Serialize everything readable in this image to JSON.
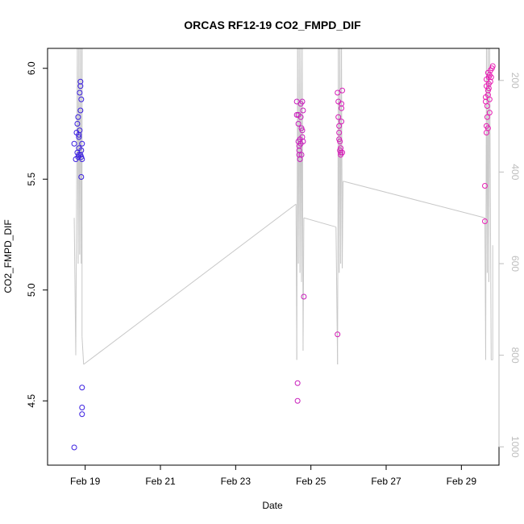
{
  "chart_data": {
    "type": "scatter",
    "title": "ORCAS RF12-19 CO2_FMPD_DIF",
    "xlabel": "Date",
    "ylabel": "CO2_FMPD_DIF",
    "xlim": [
      "2016-02-18 00:00",
      "2016-03-01 00:00"
    ],
    "ylim": [
      4.21,
      6.09
    ],
    "y_ticks": [
      "4.5",
      "5.0",
      "5.5",
      "6.0"
    ],
    "y_tick_values": [
      4.5,
      5.0,
      5.5,
      6.0
    ],
    "x_ticks": [
      "Feb 19",
      "Feb 21",
      "Feb 23",
      "Feb 25",
      "Feb 27",
      "Feb 29"
    ],
    "x_tick_values": [
      "2016-02-19",
      "2016-02-21",
      "2016-02-23",
      "2016-02-25",
      "2016-02-27",
      "2016-02-29"
    ],
    "right_axis": {
      "ylim": [
        1040,
        130
      ],
      "ticks": [
        "200",
        "400",
        "600",
        "800",
        "1000"
      ],
      "tick_values": [
        200,
        400,
        600,
        800,
        1000
      ],
      "color": "#bdbdbd"
    },
    "grid": false,
    "colors": {
      "early": "#3a1fe0",
      "late": "#e81eb4",
      "line": "#c8c8c8"
    },
    "series": [
      {
        "marker": "circle-open",
        "points": [
          [
            "2016-02-18 17:00",
            5.66,
            0.0
          ],
          [
            "2016-02-18 17:00",
            4.29,
            0.0
          ],
          [
            "2016-02-18 18:00",
            5.59,
            0.0
          ],
          [
            "2016-02-18 18:30",
            5.71,
            0.0
          ],
          [
            "2016-02-18 19:00",
            5.62,
            0.0
          ],
          [
            "2016-02-18 19:00",
            5.75,
            0.0
          ],
          [
            "2016-02-18 19:30",
            5.6,
            0.0
          ],
          [
            "2016-02-18 19:30",
            5.78,
            0.0
          ],
          [
            "2016-02-18 20:00",
            5.61,
            0.0
          ],
          [
            "2016-02-18 20:00",
            5.69,
            0.0
          ],
          [
            "2016-02-18 20:00",
            5.64,
            0.0
          ],
          [
            "2016-02-18 20:00",
            5.7,
            0.0
          ],
          [
            "2016-02-18 20:30",
            5.89,
            0.0
          ],
          [
            "2016-02-18 20:30",
            5.72,
            0.0
          ],
          [
            "2016-02-18 21:00",
            5.81,
            0.0
          ],
          [
            "2016-02-18 21:00",
            5.94,
            0.0
          ],
          [
            "2016-02-18 21:00",
            5.92,
            0.0
          ],
          [
            "2016-02-18 21:00",
            5.61,
            0.0
          ],
          [
            "2016-02-18 21:30",
            5.86,
            0.0
          ],
          [
            "2016-02-18 21:30",
            5.63,
            0.0
          ],
          [
            "2016-02-18 21:30",
            5.6,
            0.0
          ],
          [
            "2016-02-18 21:30",
            5.51,
            0.0
          ],
          [
            "2016-02-18 22:00",
            5.66,
            0.0
          ],
          [
            "2016-02-18 22:00",
            4.56,
            0.0
          ],
          [
            "2016-02-18 22:00",
            4.47,
            0.0
          ],
          [
            "2016-02-18 22:00",
            4.44,
            0.0
          ],
          [
            "2016-02-18 22:00",
            5.59,
            0.0
          ],
          [
            "2016-02-24 15:00",
            5.85,
            0.82
          ],
          [
            "2016-02-24 15:00",
            5.79,
            0.82
          ],
          [
            "2016-02-24 15:30",
            4.58,
            0.82
          ],
          [
            "2016-02-24 15:30",
            4.5,
            0.82
          ],
          [
            "2016-02-24 16:00",
            5.79,
            0.82
          ],
          [
            "2016-02-24 16:00",
            5.75,
            0.82
          ],
          [
            "2016-02-24 16:00",
            5.67,
            0.82
          ],
          [
            "2016-02-24 16:30",
            5.63,
            0.82
          ],
          [
            "2016-02-24 16:30",
            5.61,
            0.82
          ],
          [
            "2016-02-24 16:30",
            5.65,
            0.82
          ],
          [
            "2016-02-24 17:00",
            5.59,
            0.82
          ],
          [
            "2016-02-24 17:00",
            5.68,
            0.82
          ],
          [
            "2016-02-24 17:30",
            5.84,
            0.82
          ],
          [
            "2016-02-24 17:30",
            5.78,
            0.82
          ],
          [
            "2016-02-24 17:30",
            5.66,
            0.82
          ],
          [
            "2016-02-24 18:00",
            5.61,
            0.82
          ],
          [
            "2016-02-24 18:00",
            5.73,
            0.82
          ],
          [
            "2016-02-24 18:30",
            5.85,
            0.82
          ],
          [
            "2016-02-24 18:30",
            5.72,
            0.82
          ],
          [
            "2016-02-24 18:30",
            5.69,
            0.82
          ],
          [
            "2016-02-24 19:00",
            5.67,
            0.82
          ],
          [
            "2016-02-24 19:00",
            5.81,
            0.82
          ],
          [
            "2016-02-24 19:30",
            4.97,
            0.82
          ],
          [
            "2016-02-25 17:00",
            4.8,
            0.9
          ],
          [
            "2016-02-25 17:00",
            5.89,
            0.9
          ],
          [
            "2016-02-25 17:30",
            5.85,
            0.9
          ],
          [
            "2016-02-25 17:30",
            5.78,
            0.9
          ],
          [
            "2016-02-25 18:00",
            5.71,
            0.9
          ],
          [
            "2016-02-25 18:00",
            5.74,
            0.9
          ],
          [
            "2016-02-25 18:00",
            5.68,
            0.9
          ],
          [
            "2016-02-25 18:30",
            5.67,
            0.9
          ],
          [
            "2016-02-25 18:30",
            5.63,
            0.9
          ],
          [
            "2016-02-25 19:00",
            5.64,
            0.9
          ],
          [
            "2016-02-25 19:00",
            5.62,
            0.9
          ],
          [
            "2016-02-25 19:00",
            5.61,
            0.9
          ],
          [
            "2016-02-25 19:30",
            5.84,
            0.9
          ],
          [
            "2016-02-25 19:30",
            5.82,
            0.9
          ],
          [
            "2016-02-25 19:30",
            5.76,
            0.9
          ],
          [
            "2016-02-25 20:00",
            5.9,
            0.9
          ],
          [
            "2016-02-25 20:00",
            5.62,
            0.9
          ],
          [
            "2016-02-29 15:00",
            5.31,
            1.0
          ],
          [
            "2016-02-29 15:00",
            5.47,
            1.0
          ],
          [
            "2016-02-29 15:30",
            5.87,
            1.0
          ],
          [
            "2016-02-29 15:30",
            5.85,
            1.0
          ],
          [
            "2016-02-29 16:00",
            5.92,
            1.0
          ],
          [
            "2016-02-29 16:00",
            5.95,
            1.0
          ],
          [
            "2016-02-29 16:00",
            5.74,
            1.0
          ],
          [
            "2016-02-29 16:00",
            5.71,
            1.0
          ],
          [
            "2016-02-29 16:30",
            5.83,
            1.0
          ],
          [
            "2016-02-29 16:30",
            5.78,
            1.0
          ],
          [
            "2016-02-29 17:00",
            5.98,
            1.0
          ],
          [
            "2016-02-29 17:00",
            5.9,
            1.0
          ],
          [
            "2016-02-29 17:00",
            5.88,
            1.0
          ],
          [
            "2016-02-29 17:00",
            5.73,
            1.0
          ],
          [
            "2016-02-29 17:30",
            5.96,
            1.0
          ],
          [
            "2016-02-29 17:30",
            5.93,
            1.0
          ],
          [
            "2016-02-29 17:30",
            5.91,
            1.0
          ],
          [
            "2016-02-29 18:00",
            5.97,
            1.0
          ],
          [
            "2016-02-29 18:00",
            5.86,
            1.0
          ],
          [
            "2016-02-29 18:00",
            5.8,
            1.0
          ],
          [
            "2016-02-29 18:30",
            5.99,
            1.0
          ],
          [
            "2016-02-29 18:30",
            5.94,
            1.0
          ],
          [
            "2016-02-29 19:00",
            5.96,
            1.0
          ],
          [
            "2016-02-29 19:30",
            6.0,
            1.0
          ],
          [
            "2016-02-29 20:00",
            6.01,
            1.0
          ]
        ]
      },
      {
        "type": "line",
        "axis": "right",
        "points": [
          [
            "2016-02-18 17:00",
            500
          ],
          [
            "2016-02-18 18:00",
            800
          ],
          [
            "2016-02-18 19:00",
            130
          ],
          [
            "2016-02-18 19:30",
            600
          ],
          [
            "2016-02-18 20:00",
            130
          ],
          [
            "2016-02-18 20:30",
            580
          ],
          [
            "2016-02-18 21:00",
            130
          ],
          [
            "2016-02-18 21:30",
            600
          ],
          [
            "2016-02-18 22:00",
            130
          ],
          [
            "2016-02-18 22:00",
            760
          ],
          [
            "2016-02-18 23:00",
            820
          ],
          [
            "2016-02-24 14:30",
            470
          ],
          [
            "2016-02-24 15:00",
            810
          ],
          [
            "2016-02-24 15:30",
            130
          ],
          [
            "2016-02-24 16:00",
            600
          ],
          [
            "2016-02-24 16:30",
            130
          ],
          [
            "2016-02-24 17:00",
            620
          ],
          [
            "2016-02-24 17:30",
            130
          ],
          [
            "2016-02-24 18:00",
            640
          ],
          [
            "2016-02-24 18:30",
            130
          ],
          [
            "2016-02-24 19:00",
            790
          ],
          [
            "2016-02-24 19:30",
            500
          ],
          [
            "2016-02-25 16:00",
            520
          ],
          [
            "2016-02-25 17:00",
            820
          ],
          [
            "2016-02-25 17:30",
            130
          ],
          [
            "2016-02-25 18:00",
            620
          ],
          [
            "2016-02-25 18:30",
            130
          ],
          [
            "2016-02-25 19:00",
            600
          ],
          [
            "2016-02-25 19:30",
            130
          ],
          [
            "2016-02-25 20:00",
            610
          ],
          [
            "2016-02-25 20:30",
            420
          ],
          [
            "2016-02-29 15:00",
            500
          ],
          [
            "2016-02-29 15:30",
            810
          ],
          [
            "2016-02-29 16:00",
            130
          ],
          [
            "2016-02-29 16:30",
            620
          ],
          [
            "2016-02-29 17:00",
            130
          ],
          [
            "2016-02-29 17:30",
            640
          ],
          [
            "2016-02-29 18:00",
            130
          ],
          [
            "2016-02-29 19:00",
            810
          ],
          [
            "2016-02-29 20:00",
            810
          ],
          [
            "2016-02-29 20:00",
            560
          ]
        ]
      }
    ]
  }
}
